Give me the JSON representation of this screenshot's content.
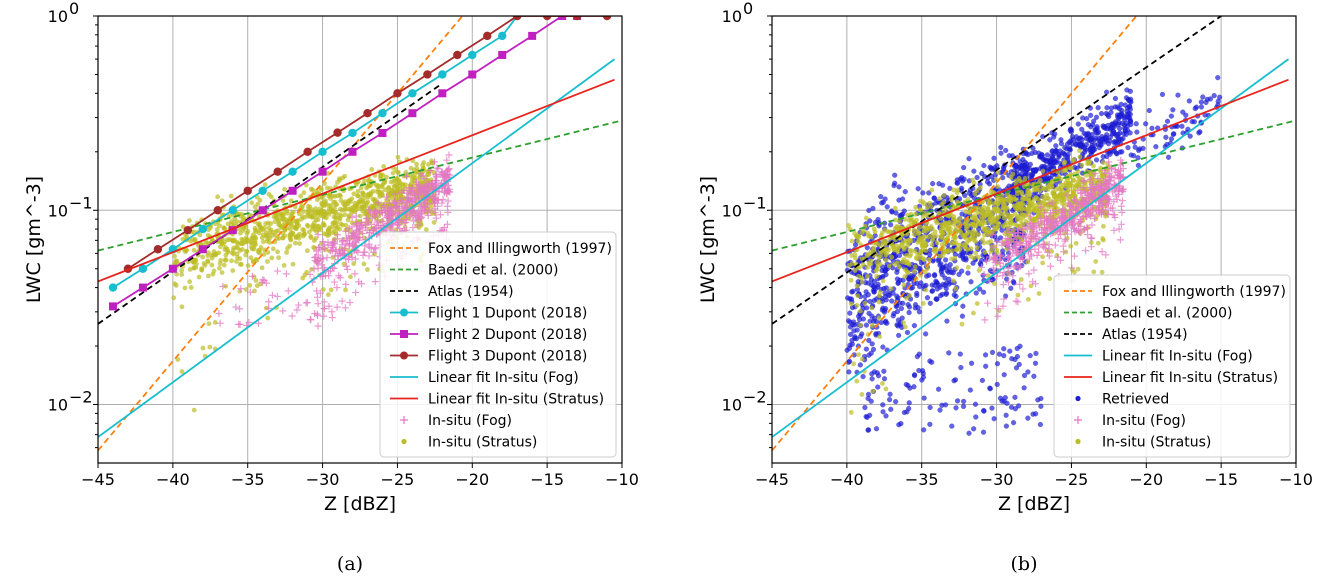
{
  "chart_data": [
    {
      "type": "line",
      "caption": "(a)",
      "xlabel": "Z [dBZ]",
      "ylabel": "LWC [gm^-3]",
      "xlim": [
        -45,
        -10
      ],
      "ylim": [
        0.005,
        1.0
      ],
      "yscale": "log",
      "grid": true,
      "legend_position": "lower-right",
      "xticks": [
        "−45",
        "−40",
        "−35",
        "−30",
        "−25",
        "−20",
        "−15",
        "−10"
      ],
      "yticks": [
        {
          "v": 0.01,
          "label": "10",
          "exp": "−2"
        },
        {
          "v": 0.1,
          "label": "10",
          "exp": "−1"
        },
        {
          "v": 1,
          "label": "10",
          "exp": "0"
        }
      ],
      "series": [
        {
          "name": "Fox and Illingworth (1997)",
          "style": "dashed",
          "color": "#ff7f0e",
          "x": [
            -45,
            -20
          ],
          "y": [
            0.0058,
            1.15
          ]
        },
        {
          "name": "Baedi et al. (2000)",
          "style": "dashed",
          "color": "#2ca02c",
          "x": [
            -45,
            -10
          ],
          "y": [
            0.062,
            0.29
          ]
        },
        {
          "name": "Atlas (1954)",
          "style": "dashed",
          "color": "#000000",
          "x": [
            -45,
            -22
          ],
          "y": [
            0.026,
            0.45
          ]
        },
        {
          "name": "Flight 1 Dupont (2018)",
          "style": "solid",
          "color": "#17becf",
          "marker": "circle",
          "x": [
            -44,
            -42,
            -40,
            -38,
            -36,
            -34,
            -32,
            -30,
            -28,
            -26,
            -24,
            -22,
            -20,
            -18,
            -17
          ],
          "y": [
            0.04,
            0.05,
            0.063,
            0.08,
            0.1,
            0.126,
            0.158,
            0.2,
            0.25,
            0.316,
            0.4,
            0.5,
            0.63,
            0.79,
            1.0
          ]
        },
        {
          "name": "Flight 2 Dupont (2018)",
          "style": "solid",
          "color": "#c020c0",
          "marker": "square",
          "x": [
            -44,
            -42,
            -40,
            -38,
            -36,
            -34,
            -32,
            -30,
            -28,
            -26,
            -24,
            -22,
            -20,
            -18,
            -16,
            -14,
            -13
          ],
          "y": [
            0.032,
            0.04,
            0.05,
            0.063,
            0.079,
            0.1,
            0.126,
            0.158,
            0.2,
            0.25,
            0.316,
            0.4,
            0.5,
            0.63,
            0.79,
            1.0,
            1.0
          ]
        },
        {
          "name": "Flight 3 Dupont (2018)",
          "style": "solid",
          "color": "#a52a2a",
          "marker": "circle",
          "x": [
            -43,
            -41,
            -39,
            -37,
            -35,
            -33,
            -31,
            -29,
            -27,
            -25,
            -23,
            -21,
            -19,
            -17,
            -15,
            -13,
            -11
          ],
          "y": [
            0.05,
            0.063,
            0.079,
            0.1,
            0.126,
            0.158,
            0.2,
            0.251,
            0.316,
            0.4,
            0.5,
            0.63,
            0.79,
            1.0,
            1.0,
            1.0,
            1.0
          ]
        },
        {
          "name": "Linear fit In-situ (Fog)",
          "style": "solid",
          "color": "#17becf",
          "x": [
            -45,
            -10.5
          ],
          "y": [
            0.0068,
            0.6
          ]
        },
        {
          "name": "Linear fit In-situ (Stratus)",
          "style": "solid",
          "color": "#e8231c",
          "x": [
            -45,
            -10.5
          ],
          "y": [
            0.043,
            0.47
          ]
        },
        {
          "name": "In-situ (Fog)",
          "style": "scatter",
          "marker": "plus",
          "color": "#e377c2"
        },
        {
          "name": "In-situ (Stratus)",
          "style": "scatter",
          "marker": "dot",
          "color": "#bcbd22"
        }
      ]
    },
    {
      "type": "line",
      "caption": "(b)",
      "xlabel": "Z [dBZ]",
      "ylabel": "LWC [gm^-3]",
      "xlim": [
        -45,
        -10
      ],
      "ylim": [
        0.005,
        1.0
      ],
      "yscale": "log",
      "grid": true,
      "legend_position": "lower-right",
      "xticks": [
        "−45",
        "−40",
        "−35",
        "−30",
        "−25",
        "−20",
        "−15",
        "−10"
      ],
      "yticks": [
        {
          "v": 0.01,
          "label": "10",
          "exp": "−2"
        },
        {
          "v": 0.1,
          "label": "10",
          "exp": "−1"
        },
        {
          "v": 1,
          "label": "10",
          "exp": "0"
        }
      ],
      "series": [
        {
          "name": "Fox and Illingworth (1997)",
          "style": "dashed",
          "color": "#ff7f0e",
          "x": [
            -45,
            -20
          ],
          "y": [
            0.0058,
            1.15
          ]
        },
        {
          "name": "Baedi et al. (2000)",
          "style": "dashed",
          "color": "#2ca02c",
          "x": [
            -45,
            -10
          ],
          "y": [
            0.062,
            0.29
          ]
        },
        {
          "name": "Atlas (1954)",
          "style": "dashed",
          "color": "#000000",
          "x": [
            -45,
            -15
          ],
          "y": [
            0.026,
            1.0
          ]
        },
        {
          "name": "Linear fit In-situ (Fog)",
          "style": "solid",
          "color": "#17becf",
          "x": [
            -45,
            -10.5
          ],
          "y": [
            0.0068,
            0.6
          ]
        },
        {
          "name": "Linear fit In-situ (Stratus)",
          "style": "solid",
          "color": "#e8231c",
          "x": [
            -45,
            -10.5
          ],
          "y": [
            0.043,
            0.47
          ]
        },
        {
          "name": "Retrieved",
          "style": "scatter",
          "marker": "dot",
          "color": "#1f1fe0"
        },
        {
          "name": "In-situ (Fog)",
          "style": "scatter",
          "marker": "plus",
          "color": "#e377c2"
        },
        {
          "name": "In-situ (Stratus)",
          "style": "scatter",
          "marker": "dot",
          "color": "#bcbd22"
        }
      ]
    }
  ]
}
